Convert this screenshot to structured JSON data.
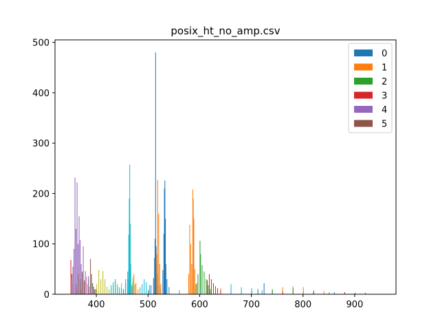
{
  "chart_data": {
    "type": "bar",
    "subtype": "histogram",
    "title": "posix_ht_no_amp.csv",
    "xlabel": "",
    "ylabel": "",
    "xlim": [
      320,
      980
    ],
    "ylim": [
      0,
      505
    ],
    "xticks": [
      400,
      500,
      600,
      700,
      800,
      900
    ],
    "yticks": [
      0,
      100,
      200,
      300,
      400,
      500
    ],
    "legend_position": "top-right",
    "series": [
      {
        "name": "0",
        "color": "#1f77b4",
        "bins": [
          [
            452,
            10
          ],
          [
            456,
            22
          ],
          [
            460,
            30
          ],
          [
            462,
            48
          ],
          [
            465,
            25
          ],
          [
            468,
            14
          ],
          [
            500,
            8
          ],
          [
            505,
            18
          ],
          [
            510,
            32
          ],
          [
            512,
            72
          ],
          [
            513,
            110
          ],
          [
            514,
            480
          ],
          [
            515,
            95
          ],
          [
            516,
            60
          ],
          [
            518,
            40
          ],
          [
            520,
            18
          ],
          [
            524,
            10
          ],
          [
            528,
            48
          ],
          [
            530,
            120
          ],
          [
            531,
            210
          ],
          [
            532,
            226
          ],
          [
            533,
            150
          ],
          [
            534,
            60
          ],
          [
            536,
            30
          ],
          [
            540,
            14
          ],
          [
            700,
            8
          ],
          [
            712,
            10
          ],
          [
            724,
            22
          ],
          [
            740,
            8
          ],
          [
            800,
            6
          ],
          [
            860,
            4
          ],
          [
            900,
            3
          ]
        ]
      },
      {
        "name": "1",
        "color": "#ff7f0e",
        "bins": [
          [
            468,
            18
          ],
          [
            472,
            40
          ],
          [
            476,
            22
          ],
          [
            480,
            10
          ],
          [
            516,
            80
          ],
          [
            518,
            227
          ],
          [
            520,
            160
          ],
          [
            522,
            60
          ],
          [
            524,
            20
          ],
          [
            578,
            40
          ],
          [
            580,
            138
          ],
          [
            582,
            100
          ],
          [
            584,
            60
          ],
          [
            586,
            208
          ],
          [
            587,
            190
          ],
          [
            588,
            150
          ],
          [
            590,
            50
          ],
          [
            594,
            22
          ],
          [
            640,
            12
          ],
          [
            680,
            10
          ],
          [
            760,
            14
          ],
          [
            780,
            16
          ],
          [
            800,
            14
          ],
          [
            820,
            8
          ],
          [
            840,
            6
          ],
          [
            880,
            4
          ]
        ]
      },
      {
        "name": "2",
        "color": "#2ca02c",
        "bins": [
          [
            592,
            20
          ],
          [
            596,
            40
          ],
          [
            600,
            106
          ],
          [
            601,
            80
          ],
          [
            604,
            58
          ],
          [
            608,
            45
          ],
          [
            612,
            30
          ],
          [
            616,
            18
          ],
          [
            620,
            10
          ],
          [
            660,
            8
          ],
          [
            700,
            6
          ],
          [
            740,
            10
          ],
          [
            780,
            12
          ],
          [
            820,
            6
          ],
          [
            850,
            4
          ]
        ]
      },
      {
        "name": "3",
        "color": "#d62728",
        "bins": [
          [
            350,
            68
          ],
          [
            352,
            40
          ],
          [
            354,
            20
          ],
          [
            360,
            14
          ],
          [
            370,
            10
          ],
          [
            614,
            28
          ],
          [
            618,
            40
          ],
          [
            622,
            30
          ],
          [
            626,
            22
          ],
          [
            630,
            16
          ],
          [
            634,
            12
          ],
          [
            640,
            8
          ],
          [
            700,
            6
          ],
          [
            760,
            5
          ],
          [
            820,
            4
          ],
          [
            880,
            4
          ],
          [
            920,
            3
          ]
        ]
      },
      {
        "name": "4",
        "color": "#9467bd",
        "bins": [
          [
            352,
            30
          ],
          [
            354,
            55
          ],
          [
            356,
            90
          ],
          [
            358,
            232
          ],
          [
            360,
            130
          ],
          [
            362,
            222
          ],
          [
            364,
            100
          ],
          [
            366,
            155
          ],
          [
            368,
            108
          ],
          [
            370,
            60
          ],
          [
            372,
            40
          ],
          [
            374,
            95
          ],
          [
            376,
            28
          ],
          [
            378,
            46
          ],
          [
            380,
            22
          ],
          [
            384,
            36
          ],
          [
            388,
            20
          ]
        ]
      },
      {
        "name": "5",
        "color": "#8c564b",
        "bins": [
          [
            360,
            20
          ],
          [
            364,
            40
          ],
          [
            368,
            30
          ],
          [
            372,
            45
          ],
          [
            376,
            25
          ],
          [
            380,
            20
          ],
          [
            384,
            30
          ],
          [
            388,
            70
          ],
          [
            390,
            40
          ],
          [
            392,
            22
          ],
          [
            394,
            15
          ],
          [
            398,
            10
          ]
        ]
      },
      {
        "name": "",
        "color": "#e377c2",
        "bins": [
          [
            380,
            35
          ],
          [
            383,
            20
          ],
          [
            386,
            15
          ],
          [
            390,
            12
          ],
          [
            395,
            8
          ]
        ]
      },
      {
        "name": "",
        "color": "#7f7f7f",
        "bins": [
          [
            384,
            30
          ],
          [
            388,
            28
          ],
          [
            392,
            18
          ],
          [
            396,
            10
          ],
          [
            400,
            8
          ]
        ]
      },
      {
        "name": "",
        "color": "#bcbd22",
        "bins": [
          [
            400,
            20
          ],
          [
            404,
            48
          ],
          [
            408,
            30
          ],
          [
            412,
            46
          ],
          [
            416,
            30
          ],
          [
            420,
            15
          ],
          [
            424,
            10
          ],
          [
            428,
            12
          ],
          [
            432,
            20
          ],
          [
            436,
            26
          ],
          [
            440,
            12
          ],
          [
            444,
            8
          ],
          [
            448,
            22
          ],
          [
            470,
            34
          ],
          [
            474,
            20
          ]
        ]
      },
      {
        "name": "",
        "color": "#17becf",
        "bins": [
          [
            428,
            18
          ],
          [
            432,
            24
          ],
          [
            436,
            30
          ],
          [
            440,
            20
          ],
          [
            444,
            14
          ],
          [
            448,
            12
          ],
          [
            456,
            30
          ],
          [
            460,
            45
          ],
          [
            462,
            118
          ],
          [
            463,
            190
          ],
          [
            464,
            257
          ],
          [
            465,
            140
          ],
          [
            466,
            60
          ],
          [
            470,
            24
          ],
          [
            484,
            14
          ],
          [
            488,
            20
          ],
          [
            492,
            30
          ],
          [
            496,
            24
          ],
          [
            502,
            18
          ],
          [
            540,
            10
          ],
          [
            560,
            8
          ],
          [
            600,
            10
          ],
          [
            660,
            20
          ],
          [
            680,
            14
          ],
          [
            700,
            12
          ],
          [
            720,
            8
          ]
        ]
      }
    ]
  }
}
